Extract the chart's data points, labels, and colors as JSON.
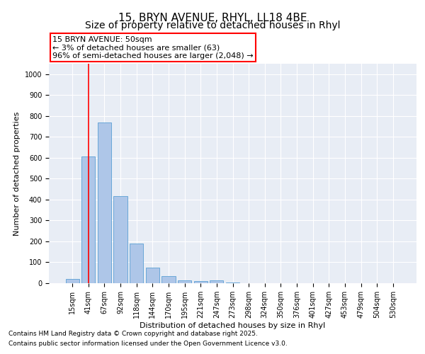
{
  "title_line1": "15, BRYN AVENUE, RHYL, LL18 4BE",
  "title_line2": "Size of property relative to detached houses in Rhyl",
  "xlabel": "Distribution of detached houses by size in Rhyl",
  "ylabel": "Number of detached properties",
  "categories": [
    "15sqm",
    "41sqm",
    "67sqm",
    "92sqm",
    "118sqm",
    "144sqm",
    "170sqm",
    "195sqm",
    "221sqm",
    "247sqm",
    "273sqm",
    "298sqm",
    "324sqm",
    "350sqm",
    "376sqm",
    "401sqm",
    "427sqm",
    "453sqm",
    "479sqm",
    "504sqm",
    "530sqm"
  ],
  "values": [
    20,
    605,
    770,
    415,
    190,
    75,
    35,
    15,
    10,
    15,
    5,
    0,
    0,
    0,
    0,
    0,
    0,
    0,
    0,
    0,
    0
  ],
  "bar_color": "#aec6e8",
  "bar_edge_color": "#5a9fd4",
  "annotation_text_line1": "15 BRYN AVENUE: 50sqm",
  "annotation_text_line2": "← 3% of detached houses are smaller (63)",
  "annotation_text_line3": "96% of semi-detached houses are larger (2,048) →",
  "vline_x_index": 1,
  "ylim": [
    0,
    1050
  ],
  "yticks": [
    0,
    100,
    200,
    300,
    400,
    500,
    600,
    700,
    800,
    900,
    1000
  ],
  "bg_color": "#e8edf5",
  "footer_line1": "Contains HM Land Registry data © Crown copyright and database right 2025.",
  "footer_line2": "Contains public sector information licensed under the Open Government Licence v3.0.",
  "annotation_fontsize": 8,
  "title_fontsize1": 11,
  "title_fontsize2": 10,
  "axis_label_fontsize": 8,
  "tick_fontsize": 7,
  "footer_fontsize": 6.5
}
